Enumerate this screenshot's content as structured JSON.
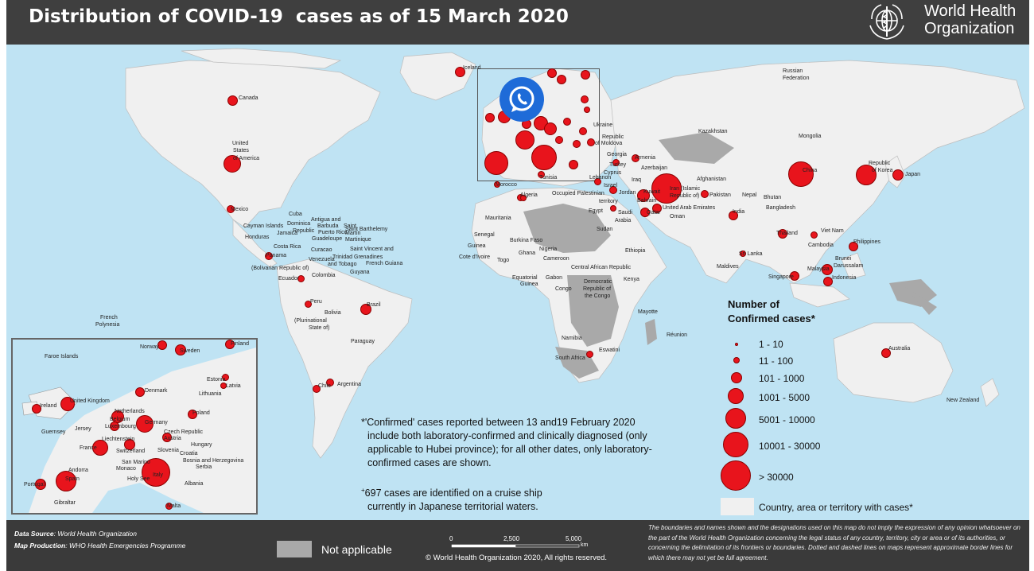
{
  "header": {
    "title": "Distribution of COVID-19  cases as of 15 March 2020",
    "org_line1": "World Health",
    "org_line2": "Organization"
  },
  "legend": {
    "title_line1": "Number of",
    "title_line2": "Confirmed cases*",
    "ranges": [
      "1 - 10",
      "11 - 100",
      "101 - 1000",
      "1001 - 5000",
      "5001 - 10000",
      "10001 - 30000",
      "> 30000"
    ],
    "cases_label": "Country, area or territory with cases*",
    "not_applicable": "Not applicable"
  },
  "notes": {
    "note1_lines": [
      "*'Confirmed' cases reported between 13 and19 February 2020",
      "include both laboratory-confirmed and clinically diagnosed (only",
      "applicable to Hubei province); for all other dates, only laboratory-",
      "confirmed cases are shown."
    ],
    "note2_sup": "+",
    "note2_lines": [
      "697 cases are identified on a cruise ship",
      "currently in Japanese territorial waters."
    ]
  },
  "footer": {
    "data_source_label": "Data Source",
    "data_source_value": ": World Health Organization",
    "map_production_label": "Map Production",
    "map_production_value": ": WHO Health Emergencies Programme",
    "copyright": "© World Health Organization  2020,  All rights reserved.",
    "scale_ticks": [
      "0",
      "2,500",
      "5,000"
    ],
    "scale_unit": "km",
    "disclaimer": "The boundaries and names shown and the designations used on this map do not imply the expression of any opinion whatsoever on the part of the World Health Organization concerning the legal status of any country, territory, city or area or of its authorities, or concerning the delimitation of its frontiers or boundaries. Dotted and dashed lines on maps represent approximate border lines for which there may not yet be full agreement."
  },
  "colors": {
    "ocean": "#bfe3f3",
    "land": "#f0f0f0",
    "not_applicable": "#a9a9a9",
    "bubble": "#e8141c",
    "header": "#3f3f3f"
  },
  "overlay_icon": "whatsapp-icon",
  "map_labels": [
    {
      "t": "Canada"
    },
    {
      "t": "United"
    },
    {
      "t": "States"
    },
    {
      "t": "of America"
    },
    {
      "t": "Mexico"
    },
    {
      "t": "Cuba"
    },
    {
      "t": "Cayman Islands"
    },
    {
      "t": "Antigua and"
    },
    {
      "t": "Dominica"
    },
    {
      "t": "Barbuda"
    },
    {
      "t": "Saint"
    },
    {
      "t": "Republic"
    },
    {
      "t": "Puerto Rico"
    },
    {
      "t": "Saint Barthelemy"
    },
    {
      "t": "Honduras"
    },
    {
      "t": "Jamaica"
    },
    {
      "t": "Guadeloupe"
    },
    {
      "t": "Martin"
    },
    {
      "t": "Martinique"
    },
    {
      "t": "Costa Rica"
    },
    {
      "t": "Curacao"
    },
    {
      "t": "Saint Vincent and"
    },
    {
      "t": "Panama"
    },
    {
      "t": "Venezuela"
    },
    {
      "t": "Trinidad"
    },
    {
      "t": "Grenadines"
    },
    {
      "t": "and Tobago"
    },
    {
      "t": "French Guiana"
    },
    {
      "t": "(Bolivarian Republic of)"
    },
    {
      "t": "Guyana"
    },
    {
      "t": "Colombia"
    },
    {
      "t": "Ecuador"
    },
    {
      "t": "Peru"
    },
    {
      "t": "Brazil"
    },
    {
      "t": "Bolivia"
    },
    {
      "t": "(Plurinational"
    },
    {
      "t": "State of)"
    },
    {
      "t": "Paraguay"
    },
    {
      "t": "Chile"
    },
    {
      "t": "Argentina"
    },
    {
      "t": "French"
    },
    {
      "t": "Polynesia"
    },
    {
      "t": "Iceland"
    },
    {
      "t": "Ukraine"
    },
    {
      "t": "Republic"
    },
    {
      "t": "of Moldova"
    },
    {
      "t": "Georgia"
    },
    {
      "t": "Armenia"
    },
    {
      "t": "Azerbaijan"
    },
    {
      "t": "Turkey"
    },
    {
      "t": "Cyprus"
    },
    {
      "t": "Lebanon"
    },
    {
      "t": "Israel"
    },
    {
      "t": "Iraq"
    },
    {
      "t": "Jordan"
    },
    {
      "t": "Kuwait"
    },
    {
      "t": "Bahrain"
    },
    {
      "t": "Qatar"
    },
    {
      "t": "Saudi"
    },
    {
      "t": "Arabia"
    },
    {
      "t": "Oman"
    },
    {
      "t": "United Arab Emirates"
    },
    {
      "t": "Iran (Islamic"
    },
    {
      "t": "Republic of)"
    },
    {
      "t": "Afghanistan"
    },
    {
      "t": "Pakistan"
    },
    {
      "t": "Nepal"
    },
    {
      "t": "Bhutan"
    },
    {
      "t": "India"
    },
    {
      "t": "Bangladesh"
    },
    {
      "t": "Sri Lanka"
    },
    {
      "t": "Maldives"
    },
    {
      "t": "Kazakhstan"
    },
    {
      "t": "Mongolia"
    },
    {
      "t": "Russian"
    },
    {
      "t": "Federation"
    },
    {
      "t": "China"
    },
    {
      "t": "Republic"
    },
    {
      "t": "of Korea"
    },
    {
      "t": "Japan"
    },
    {
      "t": "Viet Nam"
    },
    {
      "t": "Thailand"
    },
    {
      "t": "Cambodia"
    },
    {
      "t": "Philippines"
    },
    {
      "t": "Brunei"
    },
    {
      "t": "Darussalam"
    },
    {
      "t": "Malaysia"
    },
    {
      "t": "Singapore"
    },
    {
      "t": "Indonesia"
    },
    {
      "t": "Australia"
    },
    {
      "t": "New Zealand"
    },
    {
      "t": "Morocco"
    },
    {
      "t": "Tunisia"
    },
    {
      "t": "Algeria"
    },
    {
      "t": "Occupied Palestinian"
    },
    {
      "t": "territory"
    },
    {
      "t": "Egypt"
    },
    {
      "t": "Mauritania"
    },
    {
      "t": "Senegal"
    },
    {
      "t": "Burkina Faso"
    },
    {
      "t": "Guinea"
    },
    {
      "t": "Nigeria"
    },
    {
      "t": "Ghana"
    },
    {
      "t": "Cote d'Ivoire"
    },
    {
      "t": "Togo"
    },
    {
      "t": "Cameroon"
    },
    {
      "t": "Central African Republic"
    },
    {
      "t": "Ethiopia"
    },
    {
      "t": "Sudan"
    },
    {
      "t": "Equatorial"
    },
    {
      "t": "Guinea"
    },
    {
      "t": "Gabon"
    },
    {
      "t": "Democratic"
    },
    {
      "t": "Republic of"
    },
    {
      "t": "the Congo"
    },
    {
      "t": "Congo"
    },
    {
      "t": "Kenya"
    },
    {
      "t": "Mayotte"
    },
    {
      "t": "Réunion"
    },
    {
      "t": "Namibia"
    },
    {
      "t": "Eswatini"
    },
    {
      "t": "South Africa"
    }
  ],
  "inset_labels": [
    {
      "t": "Faroe Islands"
    },
    {
      "t": "Norway"
    },
    {
      "t": "Sweden"
    },
    {
      "t": "Finland"
    },
    {
      "t": "Estonia"
    },
    {
      "t": "Latvia"
    },
    {
      "t": "Lithuania"
    },
    {
      "t": "Denmark"
    },
    {
      "t": "United Kingdom"
    },
    {
      "t": "Ireland"
    },
    {
      "t": "Netherlands"
    },
    {
      "t": "Belgium"
    },
    {
      "t": "Germany"
    },
    {
      "t": "Poland"
    },
    {
      "t": "Luxembourg"
    },
    {
      "t": "Guernsey"
    },
    {
      "t": "Jersey"
    },
    {
      "t": "Czech Republic"
    },
    {
      "t": "Liechtenstein"
    },
    {
      "t": "Austria"
    },
    {
      "t": "France"
    },
    {
      "t": "Switzerland"
    },
    {
      "t": "Slovenia"
    },
    {
      "t": "Hungary"
    },
    {
      "t": "Croatia"
    },
    {
      "t": "Bosnia and Herzegovina"
    },
    {
      "t": "Serbia"
    },
    {
      "t": "San Marino"
    },
    {
      "t": "Monaco"
    },
    {
      "t": "Andorra"
    },
    {
      "t": "Italy"
    },
    {
      "t": "Holy See"
    },
    {
      "t": "Spain"
    },
    {
      "t": "Portugal"
    },
    {
      "t": "Albania"
    },
    {
      "t": "Gibraltar"
    },
    {
      "t": "Malta"
    }
  ]
}
